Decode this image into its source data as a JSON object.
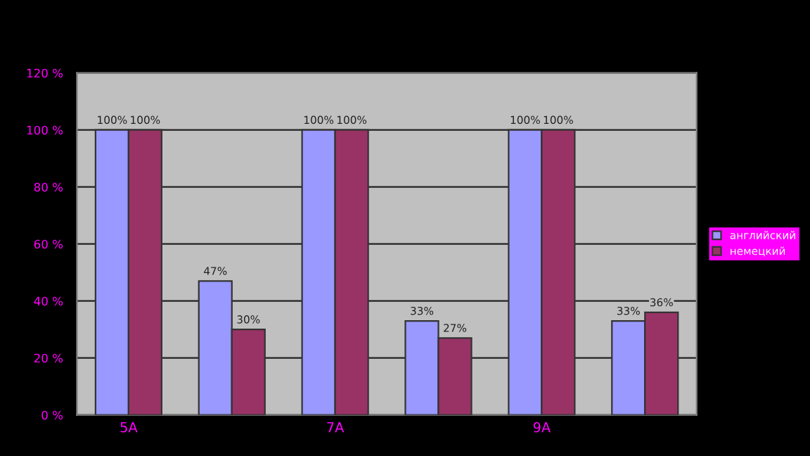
{
  "chart_data": {
    "type": "bar",
    "categories": [
      "5А",
      null,
      "7А",
      null,
      "9А",
      null
    ],
    "series": [
      {
        "name": "английский",
        "color": "#9999ff",
        "values": [
          100,
          47,
          100,
          33,
          100,
          33
        ],
        "value_labels": [
          "100%",
          "47%",
          "100%",
          "33%",
          "100%",
          "33%"
        ]
      },
      {
        "name": "немецкий",
        "color": "#993366",
        "values": [
          100,
          30,
          100,
          27,
          100,
          36
        ],
        "value_labels": [
          "100%",
          "30%",
          "100%",
          "27%",
          "100%",
          "36%"
        ]
      }
    ],
    "ylim": [
      0,
      120
    ],
    "yticks": [
      {
        "value": 0,
        "label": "0 %"
      },
      {
        "value": 20,
        "label": "20 %"
      },
      {
        "value": 40,
        "label": "40 %"
      },
      {
        "value": 60,
        "label": "60 %"
      },
      {
        "value": 80,
        "label": "80 %"
      },
      {
        "value": 100,
        "label": "100 %"
      },
      {
        "value": 120,
        "label": "120 %"
      }
    ],
    "grid": "y",
    "legend": "right"
  }
}
